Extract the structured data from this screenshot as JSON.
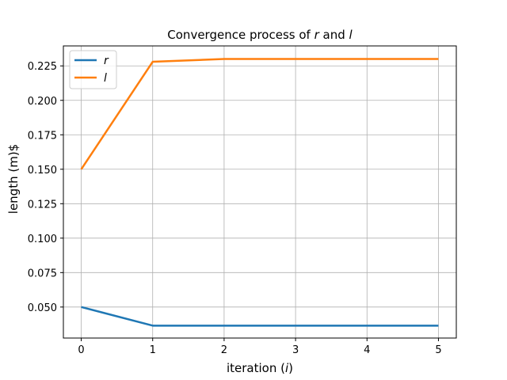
{
  "chart_data": {
    "type": "line",
    "title_parts": {
      "prefix": "Convergence process of ",
      "var1": "r",
      "middle": " and ",
      "var2": "l"
    },
    "xlabel_parts": {
      "prefix": "iteration (",
      "var": "i",
      "suffix": ")"
    },
    "ylabel": "length (m)$",
    "x": [
      0,
      1,
      2,
      3,
      4,
      5
    ],
    "xlim": [
      -0.25,
      5.25
    ],
    "ylim": [
      0.0275,
      0.2395
    ],
    "x_ticks": [
      0,
      1,
      2,
      3,
      4,
      5
    ],
    "y_ticks": [
      0.05,
      0.075,
      0.1,
      0.125,
      0.15,
      0.175,
      0.2,
      0.225
    ],
    "y_tick_labels": [
      "0.050",
      "0.075",
      "0.100",
      "0.125",
      "0.150",
      "0.175",
      "0.200",
      "0.225"
    ],
    "grid": true,
    "legend_position": "top-left",
    "series": [
      {
        "name": "r",
        "color": "#1f77b4",
        "values": [
          0.05,
          0.0365,
          0.0365,
          0.0365,
          0.0365,
          0.0365
        ]
      },
      {
        "name": "l",
        "color": "#ff7f0e",
        "values": [
          0.15,
          0.228,
          0.23,
          0.23,
          0.23,
          0.23
        ]
      }
    ]
  }
}
